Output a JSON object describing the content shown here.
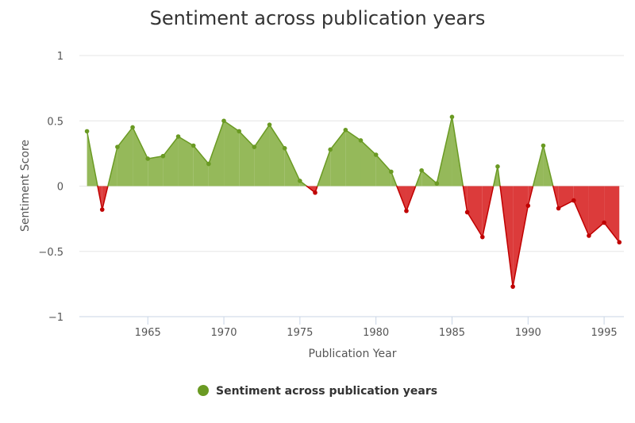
{
  "colors": {
    "positive_line": "#6a9a23",
    "positive_fill": "#95b95a",
    "negative_line": "#c00000",
    "negative_fill": "#dc3b3b",
    "grid": "#e6e6e6",
    "axis": "#c9d5e6"
  },
  "chart_data": {
    "type": "area",
    "title": "Sentiment across publication years",
    "xlabel": "Publication Year",
    "ylabel": "Sentiment Score",
    "xlim": [
      1960.5,
      1996.3
    ],
    "ylim": [
      -1,
      1
    ],
    "x_ticks": [
      1965,
      1970,
      1975,
      1980,
      1985,
      1990,
      1995
    ],
    "y_ticks": [
      1,
      0.5,
      0,
      -0.5,
      -1
    ],
    "y_tick_labels": [
      "1",
      "0.5",
      "0",
      "−0.5",
      "−1"
    ],
    "grid": true,
    "legend": {
      "position": "bottom-center",
      "label": "Sentiment across publication years",
      "marker": "circle"
    },
    "threshold": 0,
    "series": [
      {
        "name": "Sentiment across publication years",
        "x": [
          1961,
          1962,
          1963,
          1964,
          1965,
          1966,
          1967,
          1968,
          1969,
          1970,
          1971,
          1972,
          1973,
          1974,
          1975,
          1976,
          1977,
          1978,
          1979,
          1980,
          1981,
          1982,
          1983,
          1984,
          1985,
          1986,
          1987,
          1988,
          1989,
          1990,
          1991,
          1992,
          1993,
          1994,
          1995,
          1996
        ],
        "values": [
          0.42,
          -0.18,
          0.3,
          0.45,
          0.21,
          0.23,
          0.38,
          0.31,
          0.17,
          0.5,
          0.42,
          0.3,
          0.47,
          0.29,
          0.04,
          -0.05,
          0.28,
          0.43,
          0.35,
          0.24,
          0.11,
          -0.19,
          0.12,
          0.02,
          0.53,
          -0.2,
          -0.39,
          0.15,
          -0.77,
          -0.15,
          0.31,
          -0.17,
          -0.11,
          -0.38,
          -0.28,
          -0.43
        ]
      }
    ]
  }
}
